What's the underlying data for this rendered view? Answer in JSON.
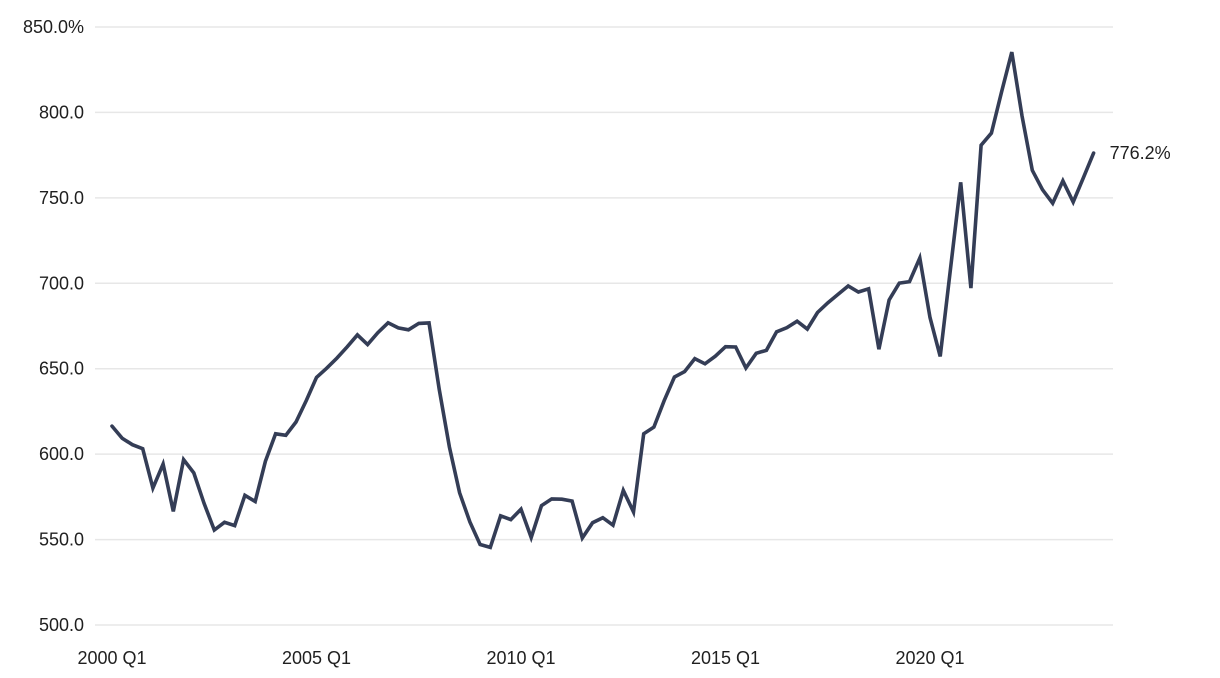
{
  "chart_data": {
    "type": "line",
    "title": "",
    "frequency": "quarterly",
    "x_start": "2000 Q1",
    "x_end": "2024 Q1",
    "values": [
      616.4,
      609.3,
      605.5,
      603.2,
      580.1,
      594.2,
      566.5,
      596.8,
      589.0,
      571.3,
      555.6,
      560.1,
      558.2,
      575.9,
      572.3,
      595.8,
      611.9,
      611.0,
      618.8,
      631.4,
      644.9,
      650.3,
      656.2,
      662.8,
      669.8,
      664.2,
      671.1,
      676.9,
      673.9,
      672.8,
      676.5,
      676.8,
      638.0,
      604.2,
      577.4,
      560.3,
      547.1,
      545.4,
      563.9,
      561.7,
      567.8,
      551.2,
      569.9,
      573.8,
      573.6,
      572.5,
      550.9,
      559.9,
      562.8,
      558.4,
      578.8,
      566.2,
      611.9,
      615.8,
      631.2,
      645.1,
      648.3,
      655.9,
      652.9,
      657.3,
      662.9,
      662.7,
      650.4,
      659.0,
      660.8,
      671.6,
      674.0,
      677.8,
      673.2,
      682.9,
      688.6,
      693.5,
      698.4,
      694.9,
      696.8,
      661.4,
      690.2,
      700.1,
      701.0,
      714.8,
      680.0,
      657.2,
      708.0,
      759.1,
      697.2,
      780.8,
      787.9,
      812.1,
      835.3,
      798.0,
      766.1,
      754.8,
      746.8,
      759.9,
      747.6,
      761.8,
      776.2
    ],
    "y_ticks": [
      {
        "value": 850,
        "label": "850.0%"
      },
      {
        "value": 800,
        "label": "800.0"
      },
      {
        "value": 750,
        "label": "750.0"
      },
      {
        "value": 700,
        "label": "700.0"
      },
      {
        "value": 650,
        "label": "650.0"
      },
      {
        "value": 600,
        "label": "600.0"
      },
      {
        "value": 550,
        "label": "550.0"
      },
      {
        "value": 500,
        "label": "500.0"
      }
    ],
    "x_ticks": [
      {
        "index": 0,
        "label": "2000 Q1"
      },
      {
        "index": 20,
        "label": "2005 Q1"
      },
      {
        "index": 40,
        "label": "2010 Q1"
      },
      {
        "index": 60,
        "label": "2015 Q1"
      },
      {
        "index": 80,
        "label": "2020 Q1"
      }
    ],
    "end_label": "776.2%",
    "ylim": [
      500,
      850
    ],
    "grid": "horizontal-only",
    "legend": "none",
    "colors": {
      "line": "#343d56",
      "gridline": "#e7e7e7",
      "tick_text": "#1f1f1f",
      "end_label_text": "#1f1f1f",
      "background": "#ffffff"
    }
  }
}
